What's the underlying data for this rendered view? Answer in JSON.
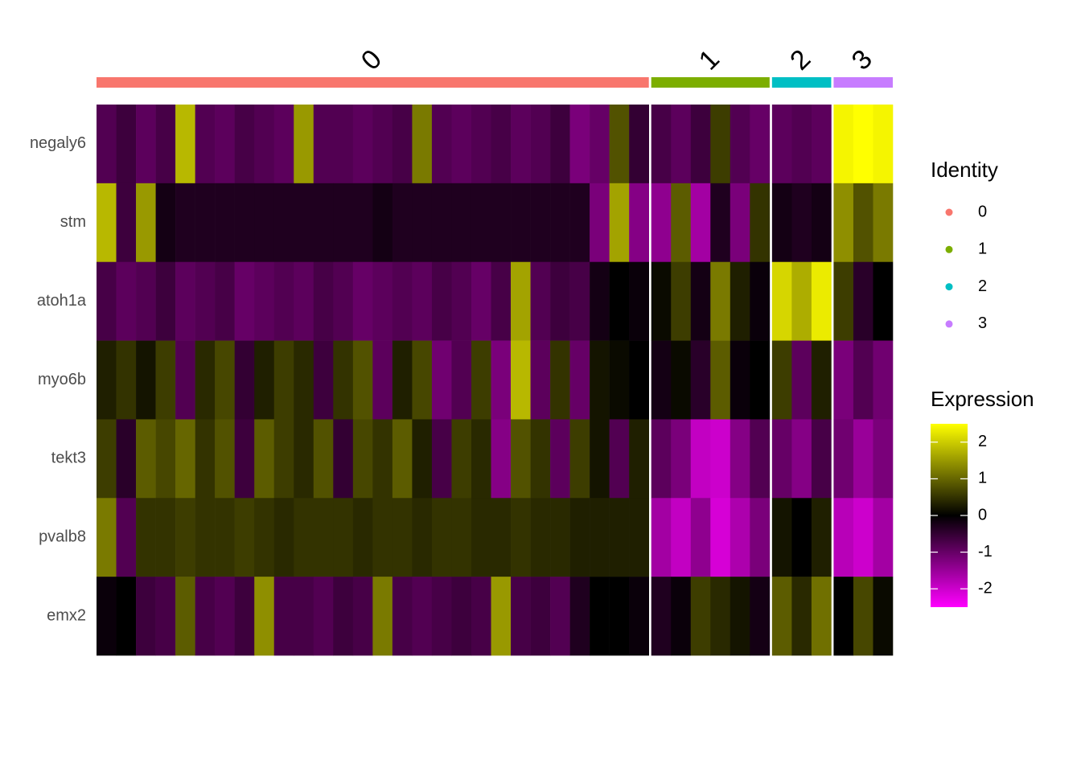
{
  "chart_data": {
    "type": "heatmap",
    "rows": [
      "negaly6",
      "stm",
      "atoh1a",
      "myo6b",
      "tekt3",
      "pvalb8",
      "emx2"
    ],
    "groups": [
      {
        "name": "0",
        "color": "#F8766D",
        "values": [
          [
            -0.8,
            -0.6,
            -0.9,
            -0.7,
            1.8,
            -0.8,
            -0.9,
            -0.7,
            -0.8,
            -0.9,
            1.5,
            -0.8,
            -0.8,
            -0.9,
            -0.8,
            -0.7,
            1.2,
            -0.8,
            -0.9,
            -0.8,
            -0.7,
            -0.9,
            -0.8,
            -0.6,
            -1.2,
            -1.0,
            0.8,
            -0.5
          ],
          [
            1.8,
            -0.6,
            1.5,
            -0.2,
            -0.3,
            -0.3,
            -0.3,
            -0.3,
            -0.3,
            -0.3,
            -0.3,
            -0.3,
            -0.3,
            -0.3,
            -0.2,
            -0.3,
            -0.3,
            -0.3,
            -0.3,
            -0.3,
            -0.3,
            -0.3,
            -0.3,
            -0.3,
            -0.3,
            -1.2,
            1.6,
            -1.3
          ],
          [
            -0.7,
            -0.9,
            -0.8,
            -0.6,
            -0.9,
            -0.8,
            -0.7,
            -1.0,
            -0.9,
            -0.8,
            -0.9,
            -0.7,
            -0.8,
            -1.0,
            -0.9,
            -0.8,
            -0.9,
            -0.7,
            -0.8,
            -1.0,
            -0.7,
            1.6,
            -0.8,
            -0.6,
            -0.7,
            -0.2,
            0.0,
            -0.1
          ],
          [
            0.3,
            0.5,
            0.2,
            0.6,
            -0.8,
            0.4,
            0.7,
            -0.5,
            0.3,
            0.6,
            0.4,
            -0.6,
            0.5,
            0.8,
            -0.9,
            0.3,
            0.7,
            -1.1,
            -0.8,
            0.6,
            -1.2,
            1.8,
            -0.9,
            0.5,
            -1.0,
            0.2,
            0.1,
            0.0
          ],
          [
            0.6,
            -0.4,
            0.9,
            0.7,
            1.0,
            0.5,
            0.8,
            -0.6,
            0.9,
            0.6,
            0.4,
            0.8,
            -0.5,
            0.7,
            0.5,
            0.9,
            0.3,
            -0.7,
            0.6,
            0.4,
            -1.3,
            0.8,
            0.5,
            -0.9,
            0.6,
            0.2,
            -0.8,
            0.3
          ],
          [
            1.2,
            -0.8,
            0.5,
            0.5,
            0.6,
            0.5,
            0.5,
            0.6,
            0.5,
            0.4,
            0.5,
            0.5,
            0.5,
            0.4,
            0.5,
            0.5,
            0.4,
            0.5,
            0.5,
            0.4,
            0.4,
            0.5,
            0.4,
            0.4,
            0.3,
            0.3,
            0.3,
            0.3
          ],
          [
            -0.1,
            0.0,
            -0.6,
            -0.7,
            0.9,
            -0.7,
            -0.8,
            -0.6,
            1.4,
            -0.7,
            -0.7,
            -0.8,
            -0.6,
            -0.7,
            1.2,
            -0.7,
            -0.8,
            -0.7,
            -0.6,
            -0.7,
            1.5,
            -0.7,
            -0.6,
            -0.8,
            -0.3,
            0.0,
            0.0,
            -0.1
          ]
        ]
      },
      {
        "name": "1",
        "color": "#7CAE00",
        "values": [
          [
            -0.7,
            -0.9,
            -0.6,
            0.6,
            -0.8,
            -1.0
          ],
          [
            -1.4,
            0.9,
            -1.6,
            -0.3,
            -1.2,
            0.5
          ],
          [
            0.1,
            0.6,
            -0.2,
            1.2,
            0.3,
            -0.1
          ],
          [
            -0.2,
            0.1,
            -0.4,
            0.9,
            -0.1,
            0.0
          ],
          [
            -0.9,
            -1.2,
            -1.9,
            -2.0,
            -1.3,
            -0.8
          ],
          [
            -1.6,
            -1.9,
            -1.4,
            -2.1,
            -1.7,
            -1.2
          ],
          [
            -0.3,
            -0.1,
            0.6,
            0.4,
            0.2,
            -0.2
          ]
        ]
      },
      {
        "name": "2",
        "color": "#00BFC4",
        "values": [
          [
            -0.9,
            -0.8,
            -0.9
          ],
          [
            -0.2,
            -0.3,
            -0.2
          ],
          [
            2.1,
            1.7,
            2.3
          ],
          [
            0.6,
            -0.9,
            0.3
          ],
          [
            -1.0,
            -1.3,
            -0.7
          ],
          [
            0.2,
            0.0,
            0.3
          ],
          [
            0.9,
            0.4,
            1.1
          ]
        ]
      },
      {
        "name": "3",
        "color": "#C77CFF",
        "values": [
          [
            2.4,
            2.5,
            2.4
          ],
          [
            1.4,
            0.8,
            1.2
          ],
          [
            0.6,
            -0.4,
            0.0
          ],
          [
            -1.2,
            -0.8,
            -1.1
          ],
          [
            -1.1,
            -1.5,
            -1.2
          ],
          [
            -1.8,
            -2.0,
            -1.6
          ],
          [
            0.0,
            0.7,
            0.1
          ]
        ]
      }
    ],
    "identity_legend_title": "Identity",
    "colorbar_title": "Expression",
    "zlim": [
      -2.5,
      2.5
    ],
    "zticks": [
      -2,
      -1,
      0,
      1,
      2
    ],
    "colors": [
      "#FF00FF",
      "#000000",
      "#FFFF00"
    ]
  }
}
